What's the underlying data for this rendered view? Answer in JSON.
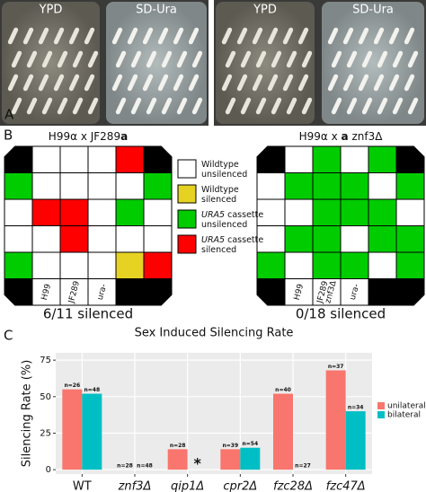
{
  "panel_a": {
    "label": "A",
    "plates": [
      {
        "text": "YPD"
      },
      {
        "text": "SD-Ura"
      },
      {
        "text": "YPD"
      },
      {
        "text": "SD-Ura"
      }
    ]
  },
  "panel_b": {
    "label": "B",
    "grids": [
      {
        "title": [
          {
            "text": "H99α x JF289"
          },
          {
            "text": "a",
            "bold": true
          }
        ],
        "caption": "6/11 silenced",
        "cells": [
          [
            "#000000",
            "#ffffff",
            "#ffffff",
            "#ffffff",
            "#ff0000",
            "#000000"
          ],
          [
            "#00cc00",
            "#ffffff",
            "#ffffff",
            "#ffffff",
            "#ffffff",
            "#00cc00"
          ],
          [
            "#ffffff",
            "#ff0000",
            "#ff0000",
            "#ffffff",
            "#00cc00",
            "#ffffff"
          ],
          [
            "#ffffff",
            "#ffffff",
            "#ff0000",
            "#ffffff",
            "#ffffff",
            "#ffffff"
          ],
          [
            "#00cc00",
            "#ffffff",
            "#ffffff",
            "#ffffff",
            "#e6d222",
            "#ff0000"
          ],
          [
            "#000000",
            {
              "lines": [
                "H99"
              ]
            },
            {
              "lines": [
                "JF289"
              ]
            },
            {
              "lines": [
                "ura-"
              ]
            },
            "#000000",
            "#000000"
          ]
        ]
      },
      {
        "title": [
          {
            "text": "H99α x "
          },
          {
            "text": "a",
            "bold": true
          },
          {
            "text": " znf3Δ"
          }
        ],
        "caption": "0/18 silenced",
        "cells": [
          [
            "#000000",
            "#ffffff",
            "#00cc00",
            "#ffffff",
            "#00cc00",
            "#000000"
          ],
          [
            "#ffffff",
            "#00cc00",
            "#00cc00",
            "#00cc00",
            "#ffffff",
            "#00cc00"
          ],
          [
            "#ffffff",
            "#ffffff",
            "#00cc00",
            "#00cc00",
            "#00cc00",
            "#ffffff"
          ],
          [
            "#ffffff",
            "#00cc00",
            "#00cc00",
            "#ffffff",
            "#00cc00",
            "#00cc00"
          ],
          [
            "#00cc00",
            "#ffffff",
            "#00cc00",
            "#00cc00",
            "#ffffff",
            "#00cc00"
          ],
          [
            "#000000",
            {
              "lines": [
                "H99"
              ]
            },
            {
              "lines": [
                "JF289",
                "znf3Δ"
              ]
            },
            {
              "lines": [
                "ura-"
              ]
            },
            "#000000",
            "#000000"
          ]
        ]
      }
    ],
    "legend": [
      {
        "color": "#ffffff",
        "lines": [
          [
            {
              "text": "Wildtype"
            }
          ],
          [
            {
              "text": "unsilenced"
            }
          ]
        ]
      },
      {
        "color": "#e6d222",
        "lines": [
          [
            {
              "text": "Wildtype"
            }
          ],
          [
            {
              "text": "silenced"
            }
          ]
        ]
      },
      {
        "color": "#00cc00",
        "lines": [
          [
            {
              "text": "URA5",
              "italic": true
            },
            {
              "text": " cassette"
            }
          ],
          [
            {
              "text": "unsilenced"
            }
          ]
        ]
      },
      {
        "color": "#ff0000",
        "lines": [
          [
            {
              "text": "URA5",
              "italic": true
            },
            {
              "text": " cassette"
            }
          ],
          [
            {
              "text": "silenced"
            }
          ]
        ]
      }
    ]
  },
  "panel_c": {
    "label": "C"
  },
  "chart_data": {
    "type": "bar",
    "title": "Sex Induced Silencing Rate",
    "y_label": "Silencing Rate (%)",
    "categories": [
      "WT",
      "znf3Δ",
      "qip1Δ",
      "cpr2Δ",
      "fzc28Δ",
      "fzc47Δ"
    ],
    "category_italic": [
      false,
      true,
      true,
      true,
      true,
      true
    ],
    "series": [
      {
        "name": "unilateral",
        "color": "#f8766d",
        "values": [
          55,
          0,
          14,
          14,
          52,
          68
        ],
        "n_labels": [
          "n=26",
          "n=28",
          "n=28",
          "n=39",
          "n=40",
          "n=37"
        ]
      },
      {
        "name": "bilateral",
        "color": "#00bfc4",
        "values": [
          52,
          0,
          null,
          15,
          0,
          40
        ],
        "n_labels": [
          "n=48",
          "n=48",
          "*",
          "n=54",
          "n=27",
          "n=34"
        ]
      }
    ],
    "ylim": [
      -3,
      80
    ],
    "yticks": [
      0,
      25,
      50,
      75
    ],
    "grid": true
  }
}
